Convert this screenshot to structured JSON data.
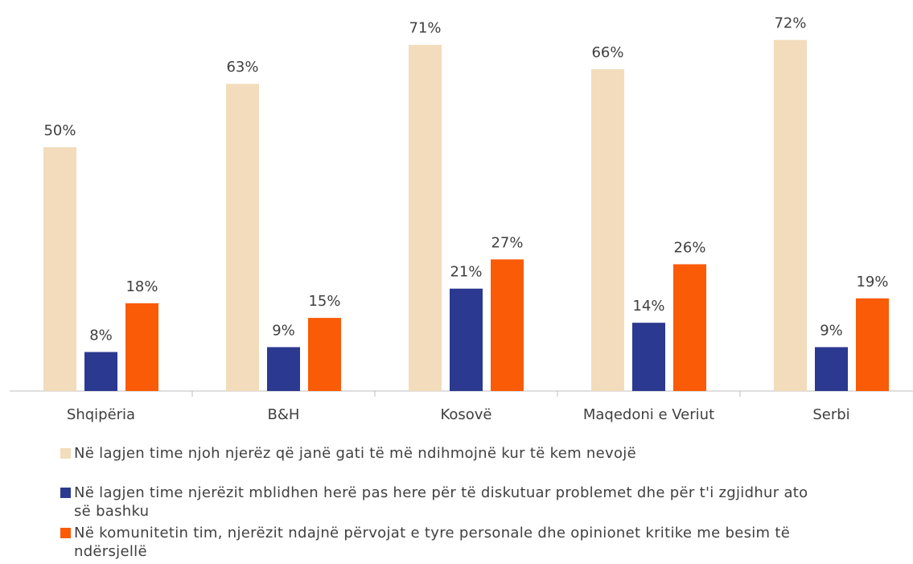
{
  "chart_data": {
    "type": "bar",
    "categories": [
      "Shqipëria",
      "B&H",
      "Kosovë",
      "Maqedoni e Veriut",
      "Serbi"
    ],
    "series": [
      {
        "name": "Në lagjen time njoh njerëz që janë gati të më ndihmojnë kur të kem nevojë",
        "color": "#f2dcbb",
        "values": [
          50,
          63,
          71,
          66,
          72
        ],
        "value_labels": [
          "50%",
          "63%",
          "71%",
          "66%",
          "72%"
        ]
      },
      {
        "name": "Në lagjen time njerëzit mblidhen herë pas here për të diskutuar problemet dhe për t'i zgjidhur ato së bashku",
        "color": "#2b3990",
        "values": [
          8,
          9,
          21,
          14,
          9
        ],
        "value_labels": [
          "8%",
          "9%",
          "21%",
          "14%",
          "9%"
        ]
      },
      {
        "name": "Në komunitetin tim, njerëzit ndajnë përvojat e tyre personale dhe opinionet kritike me besim të ndërsjellë",
        "color": "#f95b07",
        "values": [
          18,
          15,
          27,
          26,
          19
        ],
        "value_labels": [
          "18%",
          "15%",
          "27%",
          "26%",
          "19%"
        ]
      }
    ]
  }
}
